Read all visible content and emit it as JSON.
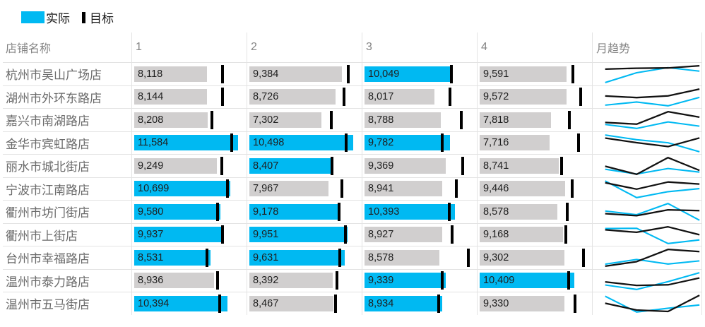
{
  "legend": {
    "actual_label": "实际",
    "target_label": "目标"
  },
  "colors": {
    "actual": "#00b9f2",
    "target": "#000000",
    "bar_gray": "#d1cfcf",
    "gridline": "#e3e3e3"
  },
  "chart_data": {
    "type": "table",
    "title": "",
    "legend_entries": [
      "实际",
      "目标"
    ],
    "columns": [
      "店铺名称",
      "1",
      "2",
      "3",
      "4",
      "月趋势"
    ],
    "bullet_rule": "bar is cyan when actual >= target, gray otherwise; black tick marks target",
    "rows": [
      {
        "name": "杭州市吴山广场店",
        "actual": [
          8118,
          9384,
          10049,
          9591
        ],
        "target": [
          9850,
          9970,
          10000,
          10280
        ]
      },
      {
        "name": "湖州市外环东路店",
        "actual": [
          8144,
          8726,
          8017,
          9572
        ],
        "target": [
          9850,
          9540,
          9860,
          11110
        ]
      },
      {
        "name": "嘉兴市南湖路店",
        "actual": [
          8208,
          7302,
          8788,
          7818
        ],
        "target": [
          8670,
          8280,
          11150,
          9900
        ]
      },
      {
        "name": "金华市宾虹路店",
        "actual": [
          11584,
          10498,
          9782,
          7716
        ],
        "target": [
          10870,
          9800,
          8900,
          10900
        ]
      },
      {
        "name": "丽水市城北街店",
        "actual": [
          9249,
          8407,
          9369,
          8741
        ],
        "target": [
          9770,
          8350,
          11290,
          9040
        ]
      },
      {
        "name": "宁波市江南路店",
        "actual": [
          10699,
          7967,
          8941,
          9446
        ],
        "target": [
          10400,
          9360,
          10520,
          10180
        ]
      },
      {
        "name": "衢州市坊门街店",
        "actual": [
          9580,
          9178,
          10393,
          8578
        ],
        "target": [
          9300,
          9070,
          9700,
          9620
        ]
      },
      {
        "name": "衢州市上街店",
        "actual": [
          9937,
          9951,
          8927,
          9168
        ],
        "target": [
          9850,
          9680,
          10050,
          9520
        ]
      },
      {
        "name": "台州市幸福路店",
        "actual": [
          8531,
          9631,
          8578,
          9302
        ],
        "target": [
          8090,
          9120,
          11930,
          11430
        ]
      },
      {
        "name": "温州市泰力路店",
        "actual": [
          8936,
          8392,
          9339,
          10409
        ],
        "target": [
          9300,
          8880,
          8950,
          9780
        ]
      },
      {
        "name": "温州市五马街店",
        "actual": [
          10394,
          8467,
          8934,
          9330
        ],
        "target": [
          9540,
          8710,
          8540,
          10500
        ]
      }
    ]
  }
}
